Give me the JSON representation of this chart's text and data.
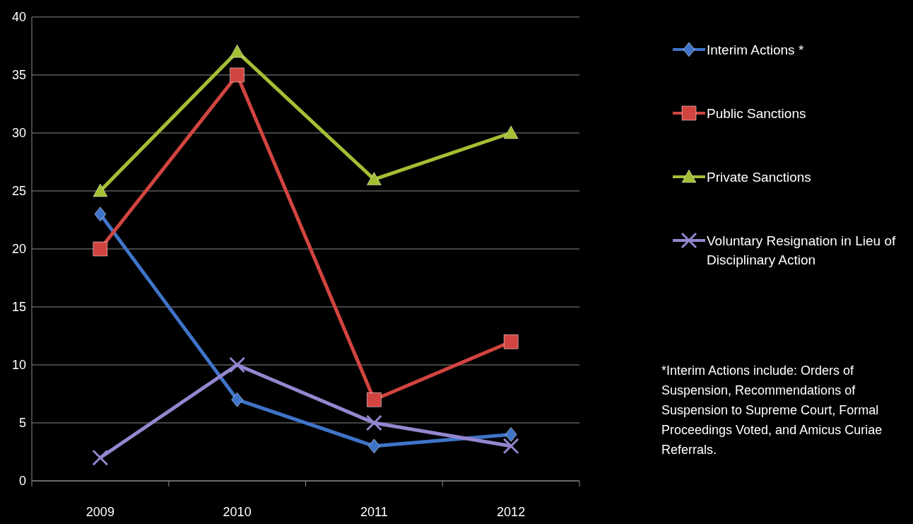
{
  "chart_data": {
    "type": "line",
    "categories": [
      "2009",
      "2010",
      "2011",
      "2012"
    ],
    "ylim": [
      0,
      40
    ],
    "yticks": [
      0,
      5,
      10,
      15,
      20,
      25,
      30,
      35,
      40
    ],
    "grid": "y",
    "legend": "right",
    "series": [
      {
        "name": "Interim Actions *",
        "color": "#3f74c8",
        "marker": "diamond",
        "values": [
          23,
          7,
          3,
          4
        ]
      },
      {
        "name": "Public Sanctions",
        "color": "#d2443f",
        "marker": "square",
        "values": [
          20,
          35,
          7,
          12
        ]
      },
      {
        "name": "Private Sanctions",
        "color": "#a4bf33",
        "marker": "triangle",
        "values": [
          25,
          37,
          26,
          30
        ]
      },
      {
        "name": "Voluntary Resignation in Lieu of Disciplinary Action",
        "color": "#9486cf",
        "marker": "cross",
        "values": [
          2,
          10,
          5,
          3
        ]
      }
    ],
    "annotations": [
      "*Interim Actions include: Orders of Suspension, Recommendations of Suspension to Supreme Court, Formal Proceedings Voted, and Amicus Curiae Referrals."
    ]
  }
}
